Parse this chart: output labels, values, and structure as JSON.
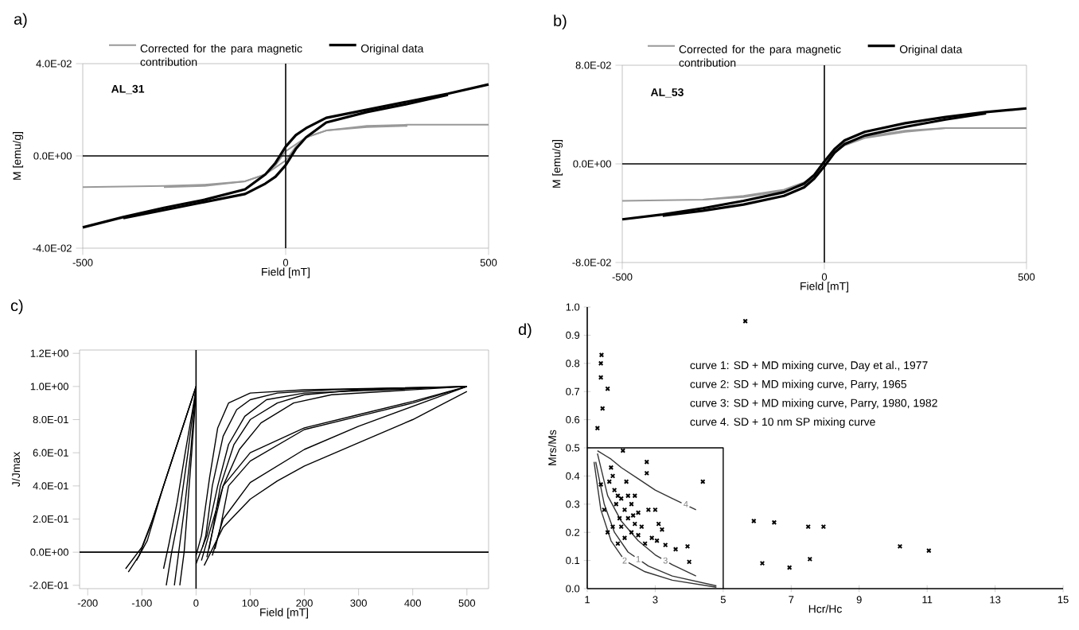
{
  "chart_data": [
    {
      "type": "line",
      "title": "a)",
      "xlabel": "Field [mT]",
      "ylabel": "M [emu/g]",
      "xlim": [
        -500,
        500
      ],
      "ylim": [
        -0.04,
        0.04
      ],
      "xticks": [
        -500,
        0,
        500
      ],
      "yticks": [
        {
          "value": -0.04,
          "label": "-4.0E-02"
        },
        {
          "value": 0,
          "label": "0.0E+00"
        },
        {
          "value": 0.04,
          "label": "4.0E-02"
        }
      ],
      "legend": "top",
      "annotations": [
        "AL_31"
      ],
      "series": [
        {
          "name": "Corrected for the para magnetic contribution",
          "color": "#999999",
          "x": [
            -500,
            -300,
            -200,
            -100,
            -50,
            -25,
            0,
            25,
            50,
            100,
            200,
            300,
            500
          ],
          "values": [
            -0.0135,
            -0.013,
            -0.0125,
            -0.011,
            -0.008,
            -0.004,
            0.002,
            0.005,
            0.008,
            0.011,
            0.013,
            0.0135,
            0.0135
          ]
        },
        {
          "color": "#999999",
          "x": [
            -300,
            -200,
            -100,
            -50,
            -25,
            0,
            25,
            50,
            100,
            200,
            300
          ],
          "values": [
            -0.0135,
            -0.013,
            -0.011,
            -0.008,
            -0.005,
            -0.002,
            0.004,
            0.008,
            0.011,
            0.0125,
            0.013
          ]
        },
        {
          "name": "Original data",
          "color": "#000000",
          "x": [
            -500,
            -400,
            -300,
            -200,
            -100,
            -50,
            -25,
            0,
            25,
            50,
            100,
            200,
            300,
            400,
            500
          ],
          "values": [
            -0.031,
            -0.0265,
            -0.0225,
            -0.019,
            -0.0145,
            -0.008,
            -0.003,
            0.004,
            0.009,
            0.012,
            0.0165,
            0.02,
            0.0235,
            0.027,
            0.031
          ]
        },
        {
          "color": "#000000",
          "x": [
            -400,
            -300,
            -200,
            -100,
            -50,
            -25,
            0,
            25,
            50,
            100,
            200,
            300,
            400
          ],
          "values": [
            -0.027,
            -0.0235,
            -0.02,
            -0.0165,
            -0.012,
            -0.009,
            -0.004,
            0.003,
            0.008,
            0.0145,
            0.019,
            0.0225,
            0.0265
          ]
        }
      ]
    },
    {
      "type": "line",
      "title": "b)",
      "xlabel": "Field [mT]",
      "ylabel": "M [emu/g]",
      "xlim": [
        -500,
        500
      ],
      "ylim": [
        -0.08,
        0.08
      ],
      "xticks": [
        -500,
        0,
        500
      ],
      "yticks": [
        {
          "value": -0.08,
          "label": "-8.0E-02"
        },
        {
          "value": 0,
          "label": "0.0E+00"
        },
        {
          "value": 0.08,
          "label": "8.0E-02"
        }
      ],
      "legend": "top",
      "annotations": [
        "AL_53"
      ],
      "series": [
        {
          "name": "Corrected for the para magnetic contribution",
          "color": "#999999",
          "x": [
            -500,
            -300,
            -200,
            -100,
            -50,
            -25,
            0,
            25,
            50,
            100,
            200,
            300,
            500
          ],
          "values": [
            -0.03,
            -0.029,
            -0.026,
            -0.021,
            -0.015,
            -0.009,
            0.001,
            0.011,
            0.017,
            0.022,
            0.027,
            0.029,
            0.029
          ]
        },
        {
          "color": "#999999",
          "x": [
            -300,
            -200,
            -100,
            -50,
            -25,
            0,
            25,
            50,
            100,
            200,
            300
          ],
          "values": [
            -0.029,
            -0.027,
            -0.022,
            -0.017,
            -0.011,
            -0.001,
            0.009,
            0.015,
            0.021,
            0.026,
            0.029
          ]
        },
        {
          "name": "Original data",
          "color": "#000000",
          "x": [
            -500,
            -400,
            -300,
            -200,
            -100,
            -50,
            -25,
            0,
            25,
            50,
            100,
            200,
            300,
            400,
            500
          ],
          "values": [
            -0.045,
            -0.041,
            -0.036,
            -0.03,
            -0.023,
            -0.016,
            -0.009,
            0.002,
            0.012,
            0.019,
            0.026,
            0.033,
            0.038,
            0.042,
            0.045
          ]
        },
        {
          "color": "#000000",
          "x": [
            -400,
            -300,
            -200,
            -100,
            -50,
            -25,
            0,
            25,
            50,
            100,
            200,
            300,
            400
          ],
          "values": [
            -0.042,
            -0.038,
            -0.033,
            -0.026,
            -0.019,
            -0.012,
            -0.002,
            0.009,
            0.016,
            0.023,
            0.03,
            0.036,
            0.041
          ]
        }
      ]
    },
    {
      "type": "line",
      "title": "c)",
      "xlabel": "Field [mT]",
      "ylabel": "J/Jmax",
      "xlim": [
        -215,
        540
      ],
      "ylim": [
        -0.22,
        1.22
      ],
      "xticks": [
        -200,
        -100,
        0,
        100,
        200,
        300,
        400,
        500
      ],
      "yticks": [
        {
          "value": -0.2,
          "label": "-2.0E-01"
        },
        {
          "value": 0,
          "label": "0.0E+00"
        },
        {
          "value": 0.2,
          "label": "2.0E-01"
        },
        {
          "value": 0.4,
          "label": "4.0E-01"
        },
        {
          "value": 0.6,
          "label": "6.0E-01"
        },
        {
          "value": 0.8,
          "label": "8.0E-01"
        },
        {
          "value": 1.0,
          "label": "1.0E+00"
        },
        {
          "value": 1.2,
          "label": "1.2E+00"
        }
      ],
      "series": [
        {
          "color": "#000000",
          "x": [
            0,
            10,
            25,
            40,
            60,
            100,
            200,
            500
          ],
          "values": [
            -0.02,
            0.1,
            0.45,
            0.75,
            0.9,
            0.96,
            0.98,
            1.0
          ]
        },
        {
          "color": "#000000",
          "x": [
            12,
            18,
            30,
            50,
            75,
            100,
            150,
            250,
            500
          ],
          "values": [
            0.03,
            0.1,
            0.4,
            0.7,
            0.86,
            0.92,
            0.96,
            0.98,
            1.0
          ]
        },
        {
          "color": "#000000",
          "x": [
            0,
            20,
            40,
            60,
            90,
            130,
            200,
            500
          ],
          "values": [
            -0.07,
            0.1,
            0.4,
            0.65,
            0.82,
            0.92,
            0.96,
            1.0
          ]
        },
        {
          "color": "#000000",
          "x": [
            24,
            30,
            45,
            70,
            100,
            150,
            200,
            300,
            500
          ],
          "values": [
            0.02,
            0.12,
            0.4,
            0.65,
            0.8,
            0.9,
            0.95,
            0.98,
            1.0
          ]
        },
        {
          "color": "#000000",
          "x": [
            10,
            25,
            50,
            80,
            120,
            180,
            250,
            500
          ],
          "values": [
            -0.05,
            0.12,
            0.4,
            0.62,
            0.78,
            0.9,
            0.95,
            1.0
          ]
        },
        {
          "color": "#000000",
          "x": [
            20,
            30,
            50,
            100,
            200,
            300,
            400,
            500
          ],
          "values": [
            -0.03,
            0.12,
            0.4,
            0.6,
            0.75,
            0.83,
            0.91,
            1.0
          ]
        },
        {
          "color": "#000000",
          "x": [
            35,
            45,
            60,
            100,
            200,
            300,
            400,
            500
          ],
          "values": [
            0.02,
            0.15,
            0.4,
            0.55,
            0.74,
            0.82,
            0.9,
            1.0
          ]
        },
        {
          "color": "#000000",
          "x": [
            30,
            50,
            100,
            200,
            300,
            400,
            500
          ],
          "values": [
            -0.02,
            0.2,
            0.42,
            0.62,
            0.76,
            0.88,
            1.0
          ]
        },
        {
          "color": "#000000",
          "x": [
            15,
            50,
            100,
            150,
            200,
            300,
            400,
            500
          ],
          "values": [
            -0.08,
            0.15,
            0.32,
            0.43,
            0.52,
            0.66,
            0.8,
            0.97
          ]
        },
        {
          "color": "#000000",
          "x": [
            -130,
            -100,
            -80,
            -50,
            -20,
            0
          ],
          "values": [
            -0.1,
            0.03,
            0.2,
            0.5,
            0.8,
            1.0
          ]
        },
        {
          "color": "#000000",
          "x": [
            -125,
            -105,
            -85,
            -55,
            -25,
            0
          ],
          "values": [
            -0.12,
            -0.02,
            0.15,
            0.45,
            0.75,
            1.0
          ]
        },
        {
          "color": "#000000",
          "x": [
            -110,
            -90,
            -60,
            -30,
            0
          ],
          "values": [
            -0.05,
            0.07,
            0.4,
            0.7,
            1.0
          ]
        },
        {
          "color": "#000000",
          "x": [
            -40,
            -30,
            -20,
            -10,
            0
          ],
          "values": [
            -0.2,
            0.05,
            0.3,
            0.6,
            1.0
          ]
        },
        {
          "color": "#000000",
          "x": [
            -55,
            -45,
            -30,
            -15,
            0
          ],
          "values": [
            -0.2,
            0.0,
            0.25,
            0.6,
            1.0
          ]
        },
        {
          "color": "#000000",
          "x": [
            -60,
            -50,
            -35,
            -20,
            0
          ],
          "values": [
            -0.1,
            0.05,
            0.3,
            0.6,
            0.98
          ]
        },
        {
          "color": "#000000",
          "x": [
            -30,
            -22,
            -15,
            -8,
            0
          ],
          "values": [
            -0.2,
            0.0,
            0.3,
            0.6,
            0.97
          ]
        }
      ]
    },
    {
      "type": "scatter",
      "title": "d)",
      "xlabel": "Hcr/Hc",
      "ylabel": "Mrs/Ms",
      "xlim": [
        1,
        15
      ],
      "ylim": [
        0,
        1
      ],
      "xticks": [
        1,
        3,
        5,
        7,
        9,
        11,
        13,
        15
      ],
      "yticks": [
        {
          "value": 0,
          "label": "0.0"
        },
        {
          "value": 0.1,
          "label": "0.1"
        },
        {
          "value": 0.2,
          "label": "0.2"
        },
        {
          "value": 0.3,
          "label": "0.3"
        },
        {
          "value": 0.4,
          "label": "0.4"
        },
        {
          "value": 0.5,
          "label": "0.5"
        },
        {
          "value": 0.6,
          "label": "0.6"
        },
        {
          "value": 0.7,
          "label": "0.7"
        },
        {
          "value": 0.8,
          "label": "0.8"
        },
        {
          "value": 0.9,
          "label": "0.9"
        },
        {
          "value": 1.0,
          "label": "1.0"
        }
      ],
      "annotations": [
        "curve 1: SD + MD mixing curve, Day et al., 1977",
        "curve 2: SD + MD mixing curve, Parry, 1965",
        "curve 3: SD + MD mixing curve, Parry, 1980, 1982",
        "curve 4. SD + 10 nm SP mixing curve",
        {
          "text": "4",
          "x": 3.9,
          "y": 0.3
        },
        {
          "text": "1",
          "x": 2.5,
          "y": 0.105
        },
        {
          "text": "2",
          "x": 2.1,
          "y": 0.1
        },
        {
          "text": "3",
          "x": 3.3,
          "y": 0.1
        }
      ],
      "series": [
        {
          "type": "line",
          "color": "#000000",
          "x": [
            1,
            5,
            5
          ],
          "values": [
            0.5,
            0.5,
            0
          ]
        },
        {
          "type": "line",
          "color": "#333333",
          "x": [
            1.3,
            1.7,
            2.0,
            2.5,
            3.0,
            3.5,
            4.2
          ],
          "values": [
            0.49,
            0.46,
            0.43,
            0.39,
            0.35,
            0.32,
            0.28
          ]
        },
        {
          "type": "line",
          "color": "#333333",
          "x": [
            1.3,
            1.6,
            2.0,
            2.5,
            3.0,
            3.5,
            4.2
          ],
          "values": [
            0.48,
            0.33,
            0.24,
            0.17,
            0.12,
            0.085,
            0.045
          ]
        },
        {
          "type": "line",
          "color": "#333333",
          "x": [
            1.25,
            1.5,
            1.8,
            2.2,
            2.8,
            3.5,
            4.8
          ],
          "values": [
            0.45,
            0.3,
            0.2,
            0.13,
            0.08,
            0.045,
            0.01
          ]
        },
        {
          "type": "line",
          "color": "#333333",
          "x": [
            1.2,
            1.4,
            1.7,
            2.1,
            2.7,
            3.5,
            4.8
          ],
          "values": [
            0.45,
            0.28,
            0.17,
            0.1,
            0.06,
            0.03,
            0.005
          ]
        },
        {
          "color": "#000000",
          "marker": "cross",
          "x": [
            1.3,
            1.4,
            1.4,
            1.42,
            1.45,
            1.6,
            2.05,
            2.75,
            2.75,
            4.4,
            5.65,
            5.9,
            6.15,
            6.5,
            6.95,
            7.5,
            7.55,
            7.95,
            10.2,
            11.05,
            1.4,
            1.5,
            1.6,
            1.7,
            1.75,
            1.8,
            1.85,
            1.9,
            1.95,
            2.0,
            2.0,
            2.1,
            2.1,
            2.2,
            2.2,
            2.3,
            2.3,
            2.4,
            2.4,
            2.5,
            2.5,
            2.6,
            2.7,
            2.8,
            2.9,
            3.0,
            3.1,
            3.2,
            3.3,
            3.6,
            3.95,
            4.0,
            1.65,
            1.75,
            2.15,
            1.9,
            2.35,
            3.05
          ],
          "values": [
            0.57,
            0.75,
            0.8,
            0.83,
            0.64,
            0.71,
            0.49,
            0.45,
            0.41,
            0.38,
            0.95,
            0.24,
            0.09,
            0.235,
            0.075,
            0.22,
            0.105,
            0.22,
            0.15,
            0.135,
            0.37,
            0.28,
            0.2,
            0.43,
            0.4,
            0.35,
            0.3,
            0.33,
            0.25,
            0.22,
            0.32,
            0.28,
            0.18,
            0.25,
            0.33,
            0.2,
            0.3,
            0.23,
            0.33,
            0.27,
            0.19,
            0.22,
            0.16,
            0.28,
            0.18,
            0.28,
            0.23,
            0.21,
            0.155,
            0.14,
            0.15,
            0.095,
            0.38,
            0.22,
            0.38,
            0.16,
            0.26,
            0.17
          ]
        }
      ]
    }
  ]
}
